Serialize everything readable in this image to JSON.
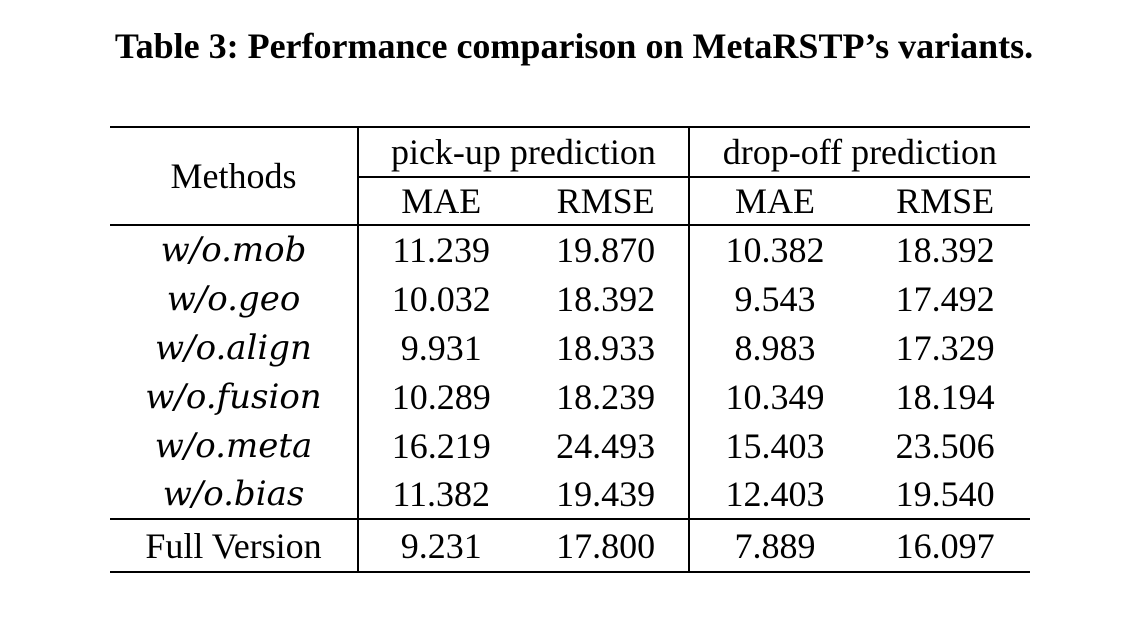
{
  "caption": "Table 3: Performance comparison on MetaRSTP’s variants.",
  "table": {
    "methods_header": "Methods",
    "groups": [
      "pick-up prediction",
      "drop-off prediction"
    ],
    "metrics": [
      "MAE",
      "RMSE",
      "MAE",
      "RMSE"
    ],
    "rows": [
      {
        "method": "w/o.mob",
        "values": [
          "11.239",
          "19.870",
          "10.382",
          "18.392"
        ]
      },
      {
        "method": "w/o.geo",
        "values": [
          "10.032",
          "18.392",
          "9.543",
          "17.492"
        ]
      },
      {
        "method": "w/o.align",
        "values": [
          "9.931",
          "18.933",
          "8.983",
          "17.329"
        ]
      },
      {
        "method": "w/o.fusion",
        "values": [
          "10.289",
          "18.239",
          "10.349",
          "18.194"
        ]
      },
      {
        "method": "w/o.meta",
        "values": [
          "16.219",
          "24.493",
          "15.403",
          "23.506"
        ]
      },
      {
        "method": "w/o.bias",
        "values": [
          "11.382",
          "19.439",
          "12.403",
          "19.540"
        ]
      }
    ],
    "full": {
      "method": "Full Version",
      "values": [
        "9.231",
        "17.800",
        "7.889",
        "16.097"
      ]
    }
  }
}
